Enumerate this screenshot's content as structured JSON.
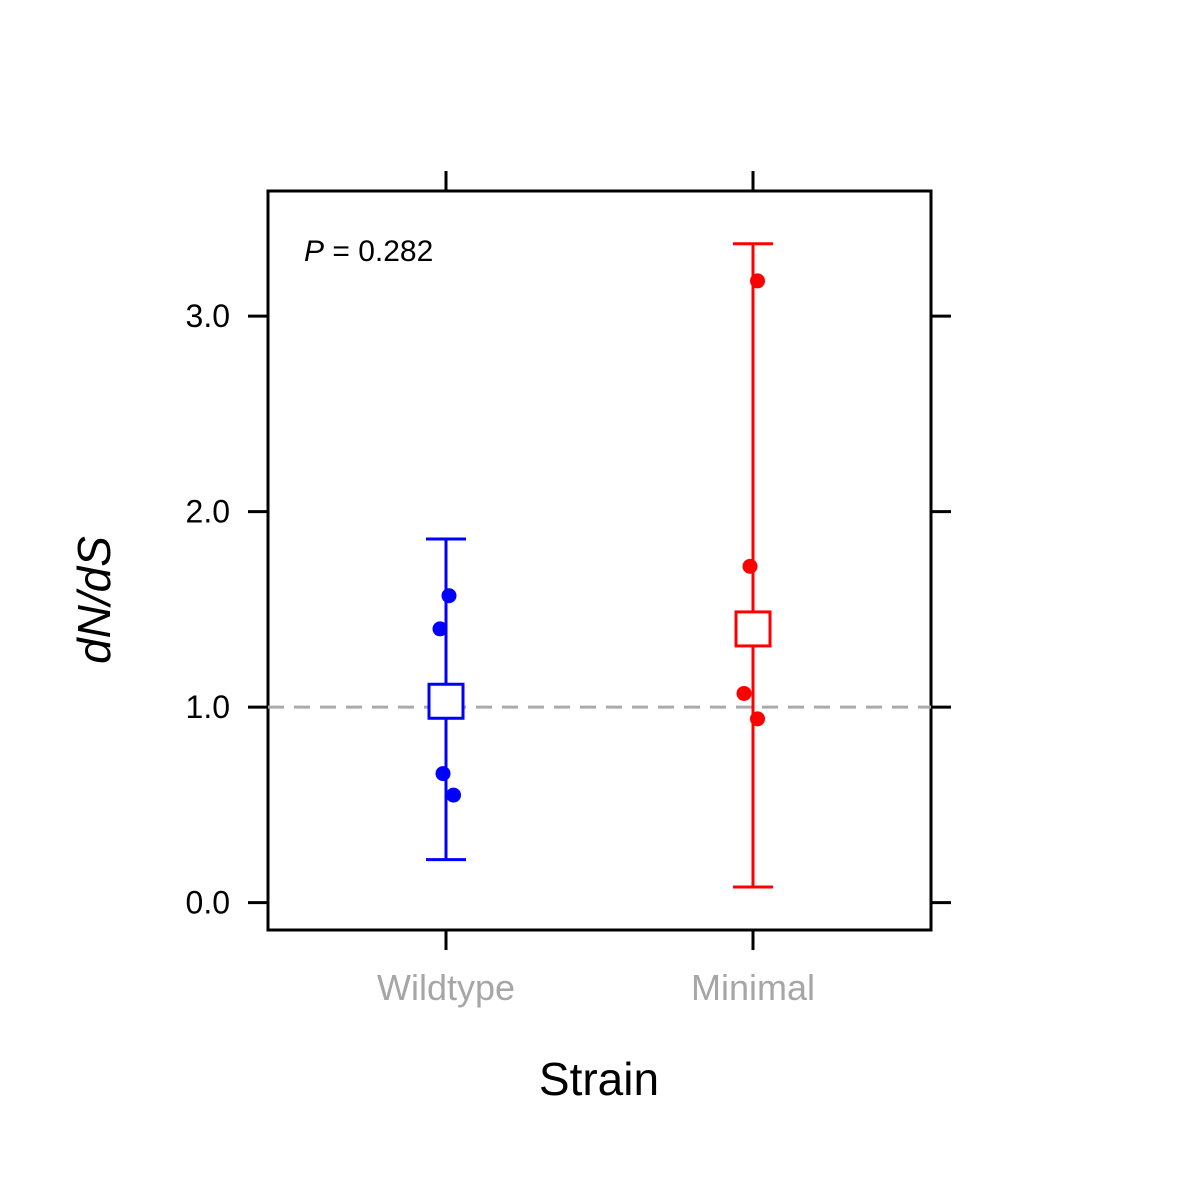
{
  "chart_data": {
    "type": "scatter",
    "xlabel": "Strain",
    "ylabel": "dN/dS",
    "categories": [
      "Wildtype",
      "Minimal"
    ],
    "ylim": [
      -0.14,
      3.64
    ],
    "yticks": [
      0.0,
      1.0,
      2.0,
      3.0
    ],
    "ytick_labels": [
      "0.0",
      "1.0",
      "2.0",
      "3.0"
    ],
    "reference_line": {
      "y": 1.0,
      "style": "dashed",
      "color": "#aaaaaa"
    },
    "annotation": {
      "prefix": "P",
      "text": " = 0.282"
    },
    "grid": false,
    "series": [
      {
        "category": "Wildtype",
        "color": "#0000ff",
        "mean": 1.03,
        "ci_low": 0.22,
        "ci_high": 1.86,
        "points": [
          {
            "y": 1.57,
            "jitter": 0.02
          },
          {
            "y": 1.4,
            "jitter": -0.04
          },
          {
            "y": 0.66,
            "jitter": -0.02
          },
          {
            "y": 0.55,
            "jitter": 0.05
          }
        ]
      },
      {
        "category": "Minimal",
        "color": "#ff0000",
        "mean": 1.4,
        "ci_low": 0.08,
        "ci_high": 3.37,
        "points": [
          {
            "y": 3.18,
            "jitter": 0.03
          },
          {
            "y": 1.72,
            "jitter": -0.02
          },
          {
            "y": 1.07,
            "jitter": -0.06
          },
          {
            "y": 0.94,
            "jitter": 0.03
          }
        ]
      }
    ]
  }
}
